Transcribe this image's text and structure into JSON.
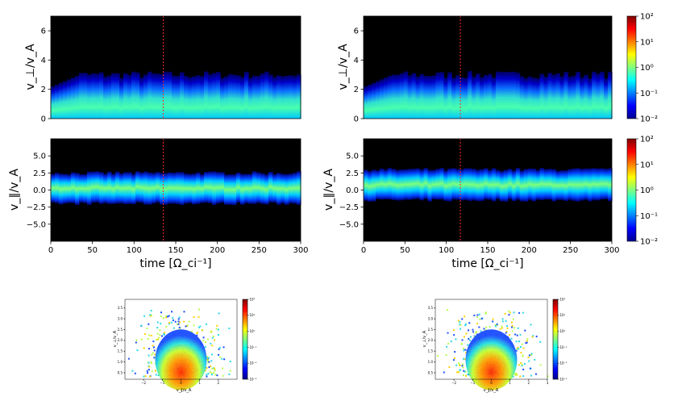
{
  "figure": {
    "title": ""
  },
  "chart_data": [
    {
      "id": "top-left",
      "type": "heatmap",
      "title": "",
      "xlabel": "",
      "ylabel": "v_⊥/v_A",
      "xlim": [
        0,
        300
      ],
      "ylim": [
        0,
        7
      ],
      "yticks": [
        "0",
        "2",
        "4",
        "6"
      ],
      "ytick_values": [
        0,
        2,
        4,
        6
      ],
      "xticks": [],
      "marker_time": 135,
      "band": {
        "center": 1.0,
        "upper_edge": 3.0,
        "lower_edge": 0.0
      }
    },
    {
      "id": "top-right",
      "type": "heatmap",
      "title": "",
      "xlabel": "",
      "ylabel": "v_⊥/v_A",
      "xlim": [
        0,
        300
      ],
      "ylim": [
        0,
        7
      ],
      "yticks": [
        "0",
        "2",
        "4",
        "6"
      ],
      "ytick_values": [
        0,
        2,
        4,
        6
      ],
      "xticks": [],
      "marker_time": 117,
      "band": {
        "center": 1.0,
        "upper_edge": 3.0,
        "lower_edge": 0.0
      },
      "colorbar": {
        "ticks": [
          "10²",
          "10¹",
          "10⁰",
          "10⁻¹",
          "10⁻²"
        ],
        "range": [
          -2,
          2
        ],
        "scale": "log"
      }
    },
    {
      "id": "bottom-left",
      "type": "heatmap",
      "title": "",
      "xlabel": "time [Ω_ci⁻¹]",
      "ylabel": "v_∥/v_A",
      "xlim": [
        0,
        300
      ],
      "ylim": [
        -7.5,
        7.5
      ],
      "yticks": [
        "5.0",
        "2.5",
        "0.0",
        "−2.5",
        "−5.0"
      ],
      "ytick_values": [
        5.0,
        2.5,
        0.0,
        -2.5,
        -5.0
      ],
      "xticks": [
        "0",
        "50",
        "100",
        "150",
        "200",
        "250",
        "300"
      ],
      "xtick_values": [
        0,
        50,
        100,
        150,
        200,
        250,
        300
      ],
      "marker_time": 135,
      "band": {
        "center": 0.0,
        "upper_edge": 2.5,
        "lower_edge": -2.0
      }
    },
    {
      "id": "bottom-right",
      "type": "heatmap",
      "title": "",
      "xlabel": "time [Ω_ci⁻¹]",
      "ylabel": "v_∥/v_A",
      "xlim": [
        0,
        300
      ],
      "ylim": [
        -7.5,
        7.5
      ],
      "yticks": [
        "5.0",
        "2.5",
        "0.0",
        "−2.5",
        "−5.0"
      ],
      "ytick_values": [
        5.0,
        2.5,
        0.0,
        -2.5,
        -5.0
      ],
      "xticks": [
        "0",
        "50",
        "100",
        "150",
        "200",
        "250",
        "300"
      ],
      "xtick_values": [
        0,
        50,
        100,
        150,
        200,
        250,
        300
      ],
      "marker_time": 117,
      "band": {
        "center": 0.0,
        "upper_edge": 3.0,
        "lower_edge": -1.5
      },
      "colorbar": {
        "ticks": [
          "10²",
          "10¹",
          "10⁰",
          "10⁻¹",
          "10⁻²"
        ],
        "range": [
          -2,
          2
        ],
        "scale": "log"
      }
    },
    {
      "id": "inset-left",
      "type": "heatmap",
      "title": "",
      "xlabel": "v_∥/v_A",
      "ylabel": "v_⊥/v_A",
      "xlim": [
        -3,
        3
      ],
      "ylim": [
        0.2,
        3.9
      ],
      "xticks": [
        "−2",
        "−1",
        "0",
        "1",
        "2"
      ],
      "xtick_values": [
        -2,
        -1,
        0,
        1,
        2
      ],
      "yticks": [
        "3.5",
        "3.0",
        "2.5",
        "2.0",
        "1.5",
        "1.0",
        "0.5"
      ],
      "ytick_values": [
        3.5,
        3.0,
        2.5,
        2.0,
        1.5,
        1.0,
        0.5
      ],
      "colorbar": {
        "ticks": [
          "10²",
          "10¹",
          "10⁰",
          "10⁻¹",
          "10⁻²",
          "10⁻³"
        ],
        "range": [
          -3,
          2
        ],
        "scale": "log"
      }
    },
    {
      "id": "inset-right",
      "type": "heatmap",
      "title": "",
      "xlabel": "v_∥/v_A",
      "ylabel": "v_⊥/v_A",
      "xlim": [
        -3,
        3
      ],
      "ylim": [
        0.2,
        3.9
      ],
      "xticks": [
        "−2",
        "−1",
        "0",
        "1",
        "2",
        "3"
      ],
      "xtick_values": [
        -2,
        -1,
        0,
        1,
        2,
        3
      ],
      "yticks": [
        "3.5",
        "3.0",
        "2.5",
        "2.0",
        "1.5",
        "1.0",
        "0.5"
      ],
      "ytick_values": [
        3.5,
        3.0,
        2.5,
        2.0,
        1.5,
        1.0,
        0.5
      ],
      "colorbar": {
        "ticks": [
          "10²",
          "10¹",
          "10⁰",
          "10⁻¹",
          "10⁻²",
          "10⁻³"
        ],
        "range": [
          -3,
          2
        ],
        "scale": "log"
      }
    }
  ]
}
